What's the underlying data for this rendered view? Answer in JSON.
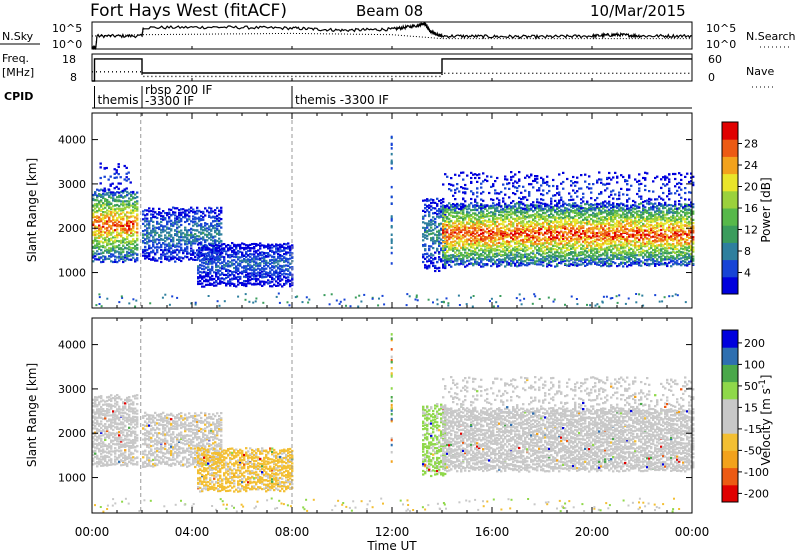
{
  "header": {
    "station": "Fort Hays West (fitACF)",
    "beam": "Beam 08",
    "date": "10/Mar/2015"
  },
  "top_panels": {
    "nsky_label": "N.Sky",
    "nsky_ticks": [
      "10^5",
      "10^0"
    ],
    "nsearch_label": "N.Search",
    "nsearch_ticks": [
      "10^5",
      "10^0"
    ],
    "freq_label": "Freq.",
    "freq_unit": "[MHz]",
    "freq_ticks": [
      "18",
      "8"
    ],
    "nave_label": "Nave",
    "nave_ticks": [
      "60",
      "0"
    ],
    "cpid_label": "CPID"
  },
  "chart_data": [
    {
      "type": "line",
      "panel": "noise",
      "x_unit": "hours UT",
      "series": [
        {
          "name": "N.Sky",
          "style": "solid",
          "x": [
            0.0,
            0.15,
            0.2,
            2.0,
            2.05,
            5.0,
            8.0,
            10.0,
            12.0,
            13.0,
            13.3,
            13.5,
            13.7,
            14.0,
            16.0,
            18.0,
            20.0,
            21.0,
            22.0,
            24.0
          ],
          "y": [
            0.05,
            0.05,
            0.5,
            0.5,
            0.82,
            0.84,
            0.8,
            0.72,
            0.76,
            0.9,
            1.0,
            0.7,
            0.6,
            0.5,
            0.48,
            0.47,
            0.5,
            0.55,
            0.5,
            0.5
          ]
        },
        {
          "name": "N.Search",
          "style": "dotted",
          "x": [
            0.0,
            2.0,
            8.0,
            12.0,
            14.0,
            24.0
          ],
          "y": [
            0.5,
            0.55,
            0.6,
            0.55,
            0.4,
            0.4
          ]
        }
      ]
    },
    {
      "type": "line",
      "panel": "frequency",
      "x_unit": "hours UT",
      "series": [
        {
          "name": "Freq.",
          "style": "solid",
          "x": [
            0.0,
            0.1,
            0.1,
            2.0,
            2.0,
            14.0,
            14.0,
            24.0
          ],
          "y": [
            8,
            8,
            17.6,
            17.6,
            11.5,
            11.5,
            17.6,
            17.6
          ]
        },
        {
          "name": "Nave",
          "style": "dotted",
          "x": [
            0.0,
            2.0,
            2.0,
            14.0,
            14.0,
            24.0
          ],
          "y": [
            24,
            24,
            12,
            12,
            20,
            20
          ]
        }
      ]
    },
    {
      "type": "timeline",
      "panel": "cpid",
      "segments": [
        {
          "start": 0.1,
          "label": "themis"
        },
        {
          "start": 2.0,
          "label": "rbsp 200 IF\n-3300 IF"
        },
        {
          "start": 8.0,
          "label": "themis -3300 IF"
        }
      ]
    },
    {
      "type": "heatmap",
      "panel": "power",
      "ylabel": "Slant Range [km]",
      "xlabel": "",
      "xlim": [
        0,
        24
      ],
      "ylim": [
        200,
        4600
      ],
      "ytick_values": [
        1000,
        2000,
        3000,
        4000
      ],
      "colorbar": {
        "label": "Power [dB]",
        "ticks": [
          "4",
          "8",
          "12",
          "16",
          "20",
          "24",
          "28"
        ],
        "range": [
          0,
          30
        ],
        "colors": [
          "#0000dd",
          "#1744d6",
          "#2e7f9e",
          "#3a9c5c",
          "#57b84a",
          "#9bd13c",
          "#e9e52a",
          "#f2a21c",
          "#ec5a13",
          "#e00000"
        ]
      },
      "regions": [
        {
          "t0": 0.0,
          "t1": 1.8,
          "r0": 1300,
          "r1": 2900,
          "center_val": 26,
          "spread": 1.3,
          "density": 0.85
        },
        {
          "t0": 0.3,
          "t1": 1.6,
          "r0": 2900,
          "r1": 3500,
          "center_val": 4,
          "spread": 0.3,
          "density": 0.25
        },
        {
          "t0": 2.0,
          "t1": 5.2,
          "r0": 1300,
          "r1": 2500,
          "center_val": 8,
          "spread": 0.7,
          "density": 0.7
        },
        {
          "t0": 4.2,
          "t1": 8.0,
          "r0": 750,
          "r1": 1700,
          "center_val": 6,
          "spread": 0.6,
          "density": 0.85
        },
        {
          "t0": 13.2,
          "t1": 14.1,
          "r0": 1100,
          "r1": 2700,
          "center_val": 9,
          "spread": 0.8,
          "density": 0.6
        },
        {
          "t0": 14.0,
          "t1": 24.0,
          "r0": 1200,
          "r1": 2600,
          "center_val": 27,
          "spread": 1.4,
          "density": 0.9
        },
        {
          "t0": 14.0,
          "t1": 24.0,
          "r0": 2500,
          "r1": 3300,
          "center_val": 4,
          "spread": 0.5,
          "density": 0.22
        }
      ]
    },
    {
      "type": "heatmap",
      "panel": "velocity",
      "ylabel": "Slant Range [km]",
      "xlabel": "Time UT",
      "xlim": [
        0,
        24
      ],
      "ylim": [
        200,
        4600
      ],
      "ytick_values": [
        1000,
        2000,
        3000,
        4000
      ],
      "xtick_labels": [
        "00:00",
        "04:00",
        "08:00",
        "12:00",
        "16:00",
        "20:00",
        "00:00"
      ],
      "colorbar": {
        "label": "Velocity [m s^-1]",
        "ticks": [
          "200",
          "100",
          "50",
          "15",
          "-15",
          "-50",
          "-100",
          "-200"
        ],
        "range": [
          -250,
          250
        ],
        "colors": [
          "#e00000",
          "#ec5a13",
          "#f2a21c",
          "#f3bf33",
          "#c8c8c8",
          "#c8c8c8",
          "#8fd84a",
          "#4aa84a",
          "#2e6fb0",
          "#0000dd"
        ]
      },
      "regions": [
        {
          "t0": 0.0,
          "t1": 1.8,
          "r0": 1300,
          "r1": 2900,
          "center_val": 0,
          "spread": 0.3,
          "density": 0.8
        },
        {
          "t0": 2.0,
          "t1": 5.2,
          "r0": 1300,
          "r1": 2500,
          "center_val": -30,
          "spread": 0.4,
          "density": 0.7
        },
        {
          "t0": 4.2,
          "t1": 8.0,
          "r0": 750,
          "r1": 1700,
          "center_val": -70,
          "spread": 0.5,
          "density": 0.85
        },
        {
          "t0": 13.2,
          "t1": 14.1,
          "r0": 1100,
          "r1": 2700,
          "center_val": 60,
          "spread": 0.3,
          "density": 0.7
        },
        {
          "t0": 14.0,
          "t1": 24.0,
          "r0": 1200,
          "r1": 2600,
          "center_val": 0,
          "spread": 0.3,
          "density": 0.9
        },
        {
          "t0": 14.0,
          "t1": 24.0,
          "r0": 2500,
          "r1": 3300,
          "center_val": 0,
          "spread": 0.5,
          "density": 0.22
        }
      ]
    }
  ]
}
